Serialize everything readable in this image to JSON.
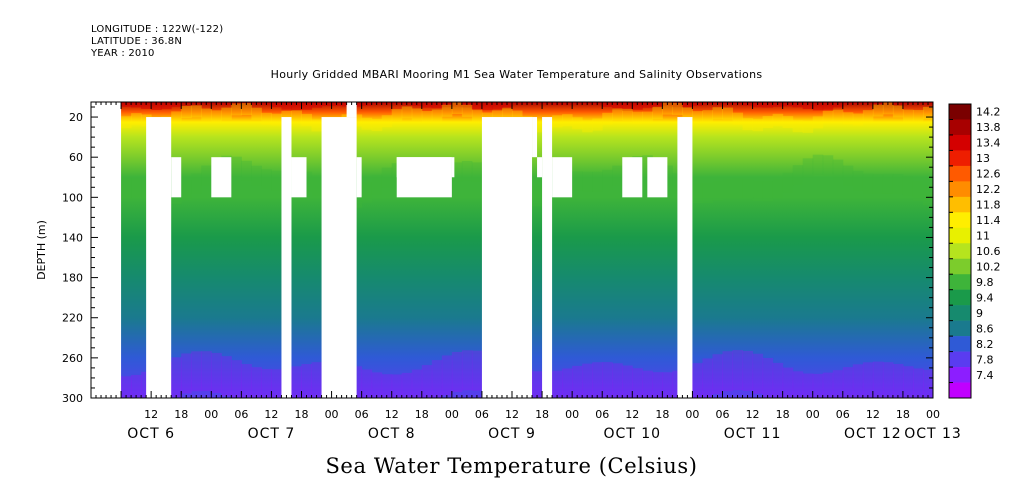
{
  "header": {
    "longitude": "LONGITUDE : 122W(-122)",
    "latitude": "LATITUDE : 36.8N",
    "year": "YEAR : 2010"
  },
  "chart_data": {
    "type": "heatmap",
    "title": "Hourly Gridded MBARI Mooring M1 Sea Water Temperature and Salinity Observations",
    "bottom_title": "Sea Water Temperature (Celsius)",
    "ylabel": "DEPTH (m)",
    "y_inverted": true,
    "ylim": [
      300,
      5
    ],
    "y_ticks": [
      20,
      60,
      100,
      140,
      180,
      220,
      260,
      300
    ],
    "x_range_hours": [
      0,
      168
    ],
    "x_ticks": [
      "12",
      "18",
      "00",
      "06",
      "12",
      "18",
      "00",
      "06",
      "12",
      "18",
      "00",
      "06",
      "12",
      "18",
      "00",
      "06",
      "12",
      "18",
      "00",
      "06",
      "12",
      "18",
      "00",
      "06",
      "12",
      "18",
      "00",
      "06",
      "12",
      "18",
      "00",
      "06"
    ],
    "date_labels": [
      {
        "label": "OCT  6",
        "hour": 12
      },
      {
        "label": "OCT  7",
        "hour": 36
      },
      {
        "label": "OCT  8",
        "hour": 60
      },
      {
        "label": "OCT  9",
        "hour": 84
      },
      {
        "label": "OCT 10",
        "hour": 108
      },
      {
        "label": "OCT 11",
        "hour": 132
      },
      {
        "label": "OCT 12",
        "hour": 156
      },
      {
        "label": "OCT 13",
        "hour": 168
      }
    ],
    "colorbar": {
      "levels": [
        "14.2",
        "13.8",
        "13.4",
        "13",
        "12.6",
        "12.2",
        "11.8",
        "11.4",
        "11",
        "10.6",
        "10.2",
        "9.8",
        "9.4",
        "9",
        "8.6",
        "8.2",
        "7.8",
        "7.4"
      ],
      "colors": [
        "#7a0000",
        "#a80000",
        "#d40000",
        "#ee1e00",
        "#ff5a00",
        "#ff8c00",
        "#ffbe00",
        "#ffee00",
        "#e8f000",
        "#b6e41e",
        "#7ccc2c",
        "#3eb43a",
        "#1a9a4a",
        "#168a6e",
        "#1a7a8e",
        "#2f5ad6",
        "#5a3cf0",
        "#8c1eff",
        "#c000ff"
      ]
    },
    "profile": [
      {
        "depth": 5,
        "value": 13.8
      },
      {
        "depth": 15,
        "value": 12.6
      },
      {
        "depth": 25,
        "value": 11.6
      },
      {
        "depth": 40,
        "value": 10.8
      },
      {
        "depth": 60,
        "value": 10.4
      },
      {
        "depth": 80,
        "value": 10.1
      },
      {
        "depth": 100,
        "value": 9.9
      },
      {
        "depth": 140,
        "value": 9.6
      },
      {
        "depth": 180,
        "value": 9.2
      },
      {
        "depth": 220,
        "value": 8.8
      },
      {
        "depth": 260,
        "value": 8.3
      },
      {
        "depth": 300,
        "value": 7.9
      }
    ],
    "missing_blocks": [
      {
        "h0": 0,
        "h1": 6,
        "d0": 5,
        "d1": 300
      },
      {
        "h0": 11,
        "h1": 16,
        "d0": 20,
        "d1": 300
      },
      {
        "h0": 16,
        "h1": 18,
        "d0": 60,
        "d1": 100
      },
      {
        "h0": 24,
        "h1": 28,
        "d0": 60,
        "d1": 100
      },
      {
        "h0": 38,
        "h1": 40,
        "d0": 20,
        "d1": 300
      },
      {
        "h0": 40,
        "h1": 43,
        "d0": 60,
        "d1": 100
      },
      {
        "h0": 46,
        "h1": 53,
        "d0": 20,
        "d1": 300
      },
      {
        "h0": 51,
        "h1": 53,
        "d0": 5,
        "d1": 20
      },
      {
        "h0": 53,
        "h1": 54,
        "d0": 60,
        "d1": 100
      },
      {
        "h0": 61,
        "h1": 72,
        "d0": 60,
        "d1": 100
      },
      {
        "h0": 61,
        "h1": 72,
        "d0": 60,
        "d1": 80
      },
      {
        "h0": 72,
        "h1": 72.5,
        "d0": 60,
        "d1": 80
      },
      {
        "h0": 78,
        "h1": 88,
        "d0": 20,
        "d1": 300
      },
      {
        "h0": 88,
        "h1": 89,
        "d0": 20,
        "d1": 60
      },
      {
        "h0": 89,
        "h1": 90,
        "d0": 60,
        "d1": 80
      },
      {
        "h0": 90,
        "h1": 92,
        "d0": 20,
        "d1": 300
      },
      {
        "h0": 92,
        "h1": 96,
        "d0": 60,
        "d1": 100
      },
      {
        "h0": 106,
        "h1": 110,
        "d0": 60,
        "d1": 100
      },
      {
        "h0": 111,
        "h1": 115,
        "d0": 60,
        "d1": 100
      },
      {
        "h0": 117,
        "h1": 120,
        "d0": 20,
        "d1": 300
      }
    ]
  }
}
